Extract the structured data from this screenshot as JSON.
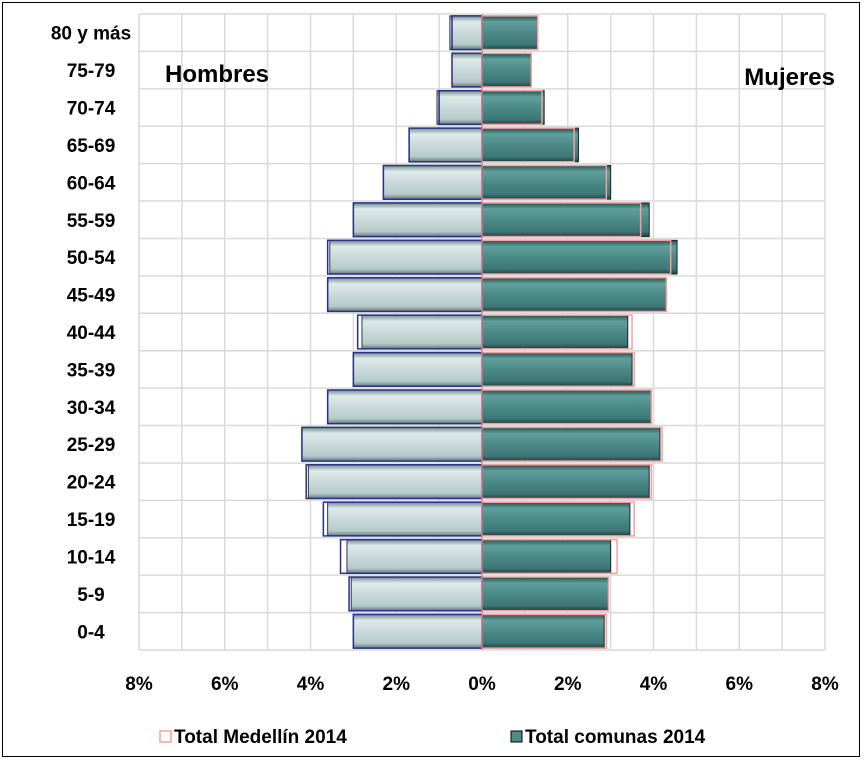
{
  "chart_data": {
    "type": "bar",
    "orientation": "horizontal-pyramid",
    "categories": [
      "0-4",
      "5-9",
      "10-14",
      "15-19",
      "20-24",
      "25-29",
      "30-34",
      "35-39",
      "40-44",
      "45-49",
      "50-54",
      "55-59",
      "60-64",
      "65-69",
      "70-74",
      "75-79",
      "80 y más"
    ],
    "left_label": "Hombres",
    "right_label": "Mujeres",
    "xlim": [
      -8,
      8
    ],
    "x_ticks": [
      -8,
      -6,
      -4,
      -2,
      0,
      2,
      4,
      6,
      8
    ],
    "x_tick_labels": [
      "8%",
      "6%",
      "4%",
      "2%",
      "0%",
      "2%",
      "4%",
      "6%",
      "8%"
    ],
    "grid": true,
    "legend_position": "bottom",
    "series": [
      {
        "name": "Total Medellín 2014",
        "style": "outline",
        "men": [
          -3.0,
          -3.1,
          -3.3,
          -3.7,
          -4.1,
          -4.2,
          -3.6,
          -3.0,
          -2.9,
          -3.6,
          -3.6,
          -3.0,
          -2.3,
          -1.7,
          -1.0,
          -0.7,
          -0.7
        ],
        "women": [
          2.9,
          2.95,
          3.15,
          3.55,
          3.95,
          4.2,
          3.95,
          3.55,
          3.5,
          4.3,
          4.4,
          3.7,
          2.9,
          2.15,
          1.4,
          1.15,
          1.3
        ]
      },
      {
        "name": "Total comunas 2014",
        "style": "filled",
        "men": [
          -3.0,
          -3.05,
          -3.15,
          -3.6,
          -4.05,
          -4.2,
          -3.6,
          -3.0,
          -2.8,
          -3.6,
          -3.55,
          -3.0,
          -2.3,
          -1.7,
          -1.05,
          -0.7,
          -0.75
        ],
        "women": [
          2.85,
          2.95,
          3.0,
          3.45,
          3.9,
          4.15,
          3.95,
          3.5,
          3.4,
          4.3,
          4.55,
          3.9,
          3.0,
          2.25,
          1.45,
          1.15,
          1.3
        ]
      }
    ]
  },
  "colors": {
    "outline_series": "#f4a0a0",
    "filled_series": "#4e8c8a",
    "filled_series_light": "#8fc4c2",
    "men_fill": "#d6e4e4",
    "men_outline": "#2a2f8a",
    "grid": "#d9d9d9"
  }
}
